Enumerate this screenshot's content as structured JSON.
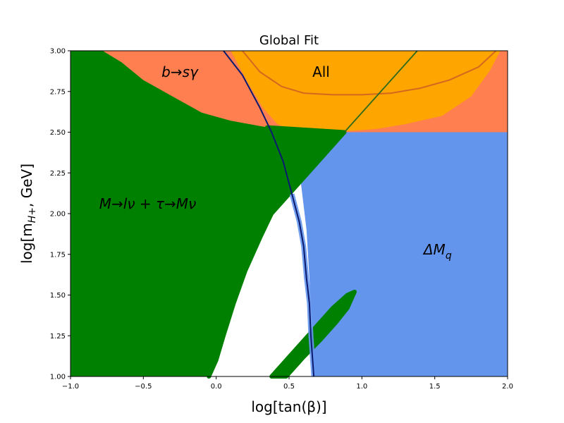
{
  "chart_data": {
    "type": "area",
    "title": "Global Fit",
    "xlabel": "log[tan(β)]",
    "ylabel_parts": {
      "lead": "log[m",
      "sub": "H+",
      "tail": ", GeV]"
    },
    "xlim": [
      -1.0,
      2.0
    ],
    "ylim": [
      1.0,
      3.0
    ],
    "x_ticks": [
      -1.0,
      -0.5,
      0.0,
      0.5,
      1.0,
      1.5,
      2.0
    ],
    "x_tick_labels": [
      "−1.0",
      "−0.5",
      "0.0",
      "0.5",
      "1.0",
      "1.5",
      "2.0"
    ],
    "y_ticks": [
      1.0,
      1.25,
      1.5,
      1.75,
      2.0,
      2.25,
      2.5,
      2.75,
      3.0
    ],
    "y_tick_labels": [
      "1.00",
      "1.25",
      "1.50",
      "1.75",
      "2.00",
      "2.25",
      "2.50",
      "2.75",
      "3.00"
    ],
    "grid": false,
    "colors": {
      "bsgamma": "#ff7f50",
      "all": "#ffa500",
      "deltaM": "#6495ed",
      "leptonic": "#008000",
      "all_contour": "#d2691e",
      "dM_boundary": "#0a1a6e",
      "tree_line": "#2f6b1a"
    },
    "regions": [
      {
        "name": "ΔM_q",
        "color_key": "deltaM",
        "polygon": [
          [
            0.45,
            1.0
          ],
          [
            2.0,
            1.0
          ],
          [
            2.0,
            2.5
          ],
          [
            0.55,
            2.5
          ],
          [
            0.58,
            2.2
          ],
          [
            0.62,
            1.9
          ],
          [
            0.64,
            1.6
          ],
          [
            0.66,
            1.3
          ],
          [
            0.67,
            1.0
          ]
        ]
      },
      {
        "name": "b→sγ",
        "color_key": "bsgamma",
        "polygon": [
          [
            -0.78,
            3.0
          ],
          [
            2.0,
            3.0
          ],
          [
            2.0,
            2.5
          ],
          [
            -0.6,
            2.5
          ]
        ]
      },
      {
        "name": "All",
        "color_key": "all",
        "polygon": [
          [
            0.1,
            3.0
          ],
          [
            1.95,
            3.0
          ],
          [
            1.88,
            2.88
          ],
          [
            1.75,
            2.72
          ],
          [
            1.55,
            2.6
          ],
          [
            1.3,
            2.55
          ],
          [
            1.1,
            2.52
          ],
          [
            0.95,
            2.51
          ],
          [
            0.8,
            2.5
          ],
          [
            0.55,
            2.5
          ],
          [
            0.42,
            2.55
          ],
          [
            0.32,
            2.65
          ],
          [
            0.22,
            2.8
          ]
        ]
      },
      {
        "name": "M→lν + τ→Mν",
        "color_key": "leptonic",
        "polygon": [
          [
            -1.0,
            1.0
          ],
          [
            -0.05,
            1.0
          ],
          [
            0.0,
            1.1
          ],
          [
            0.05,
            1.25
          ],
          [
            0.12,
            1.45
          ],
          [
            0.2,
            1.65
          ],
          [
            0.3,
            1.85
          ],
          [
            0.38,
            2.0
          ],
          [
            0.48,
            2.1
          ],
          [
            0.52,
            2.14
          ],
          [
            0.62,
            2.24
          ],
          [
            0.72,
            2.34
          ],
          [
            0.8,
            2.42
          ],
          [
            0.88,
            2.5
          ],
          [
            0.35,
            2.53
          ],
          [
            0.1,
            2.57
          ],
          [
            -0.1,
            2.62
          ],
          [
            -0.3,
            2.72
          ],
          [
            -0.5,
            2.82
          ],
          [
            -0.65,
            2.93
          ],
          [
            -0.78,
            3.0
          ],
          [
            -1.0,
            3.0
          ]
        ]
      }
    ],
    "strip": {
      "name": "leptonic-strip",
      "color_key": "leptonic",
      "polygon": [
        [
          0.38,
          1.0
        ],
        [
          0.48,
          1.0
        ],
        [
          0.6,
          1.12
        ],
        [
          0.72,
          1.23
        ],
        [
          0.82,
          1.33
        ],
        [
          0.9,
          1.42
        ],
        [
          0.95,
          1.52
        ],
        [
          0.9,
          1.5
        ],
        [
          0.8,
          1.42
        ],
        [
          0.7,
          1.32
        ],
        [
          0.6,
          1.22
        ],
        [
          0.5,
          1.12
        ],
        [
          0.42,
          1.04
        ]
      ]
    },
    "curves": [
      {
        "name": "all-contour",
        "color_key": "all_contour",
        "points": [
          [
            0.18,
            3.0
          ],
          [
            0.3,
            2.87
          ],
          [
            0.45,
            2.78
          ],
          [
            0.6,
            2.74
          ],
          [
            0.8,
            2.73
          ],
          [
            1.0,
            2.73
          ],
          [
            1.2,
            2.74
          ],
          [
            1.4,
            2.77
          ],
          [
            1.6,
            2.82
          ],
          [
            1.8,
            2.9
          ],
          [
            1.92,
            3.0
          ]
        ]
      },
      {
        "name": "dM-boundary",
        "color_key": "dM_boundary",
        "points": [
          [
            0.05,
            3.0
          ],
          [
            0.18,
            2.85
          ],
          [
            0.3,
            2.65
          ],
          [
            0.38,
            2.5
          ],
          [
            0.46,
            2.32
          ],
          [
            0.52,
            2.12
          ],
          [
            0.57,
            1.95
          ],
          [
            0.6,
            1.8
          ],
          [
            0.62,
            1.6
          ],
          [
            0.64,
            1.45
          ],
          [
            0.65,
            1.25
          ],
          [
            0.67,
            1.0
          ]
        ]
      },
      {
        "name": "tree-line",
        "color_key": "tree_line",
        "points": [
          [
            0.88,
            2.5
          ],
          [
            1.38,
            3.0
          ]
        ]
      }
    ],
    "labels": [
      {
        "text": "b→sγ",
        "x": -0.25,
        "y": 2.84,
        "italic": true
      },
      {
        "text": "All",
        "x": 0.72,
        "y": 2.84,
        "italic": false
      },
      {
        "text": "M→lν + τ→Mν",
        "x": -0.47,
        "y": 2.03,
        "italic": true
      },
      {
        "text": "ΔM_q",
        "x": 1.52,
        "y": 1.75,
        "italic": true
      }
    ]
  }
}
